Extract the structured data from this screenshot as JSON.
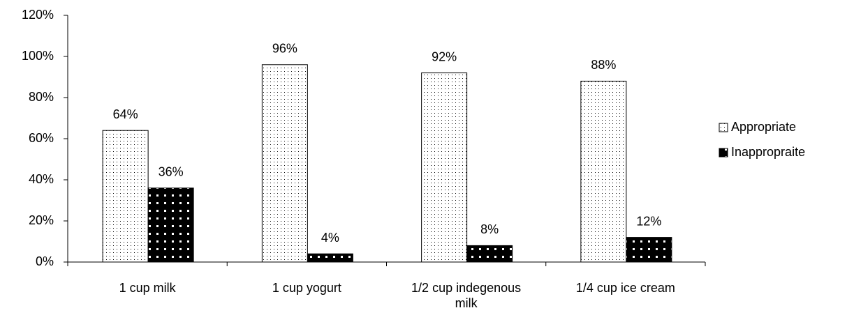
{
  "chart_data": {
    "type": "bar",
    "categories": [
      "1 cup milk",
      "1 cup yogurt",
      "1/2 cup indegenous milk",
      "1/4 cup ice cream"
    ],
    "series": [
      {
        "name": "Appropriate",
        "color": "#ffffff",
        "values": [
          64,
          96,
          92,
          88
        ],
        "value_labels": [
          "64%",
          "96%",
          "92%",
          "88%"
        ]
      },
      {
        "name": "Inappropraite",
        "color": "#000000",
        "values": [
          36,
          4,
          8,
          12
        ],
        "value_labels": [
          "36%",
          "4%",
          "8%",
          "12%"
        ]
      }
    ],
    "ylim": [
      0,
      120
    ],
    "yticks": [
      {
        "value": 0,
        "label": "0%"
      },
      {
        "value": 20,
        "label": "20%"
      },
      {
        "value": 40,
        "label": "40%"
      },
      {
        "value": 60,
        "label": "60%"
      },
      {
        "value": 80,
        "label": "80%"
      },
      {
        "value": 100,
        "label": "100%"
      },
      {
        "value": 120,
        "label": "120%"
      }
    ],
    "grid": false,
    "legend": "right"
  }
}
